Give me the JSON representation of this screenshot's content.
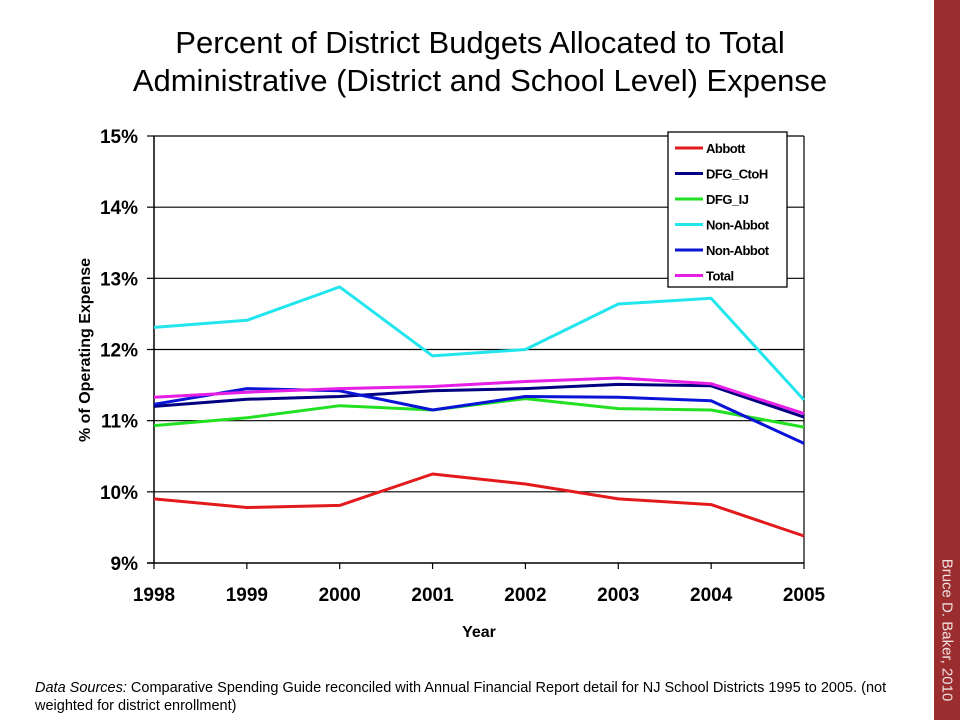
{
  "title_lines": [
    "Percent of District Budgets Allocated to Total",
    "Administrative (District and School Level) Expense"
  ],
  "side_band": {
    "text": "Bruce D. Baker, 2010",
    "color": "#9b2d2f"
  },
  "footnote": {
    "label": "Data Sources:",
    "text": " Comparative Spending Guide reconciled with Annual Financial Report detail for NJ School Districts 1995 to 2005. (not weighted for district enrollment)"
  },
  "chart_data": {
    "type": "line",
    "title": "Percent of District Budgets Allocated to Total Administrative (District and School Level) Expense",
    "xlabel": "Year",
    "ylabel": "% of Operating Expense",
    "categories": [
      "1998",
      "1999",
      "2000",
      "2001",
      "2002",
      "2003",
      "2004",
      "2005"
    ],
    "ylim": [
      9,
      15
    ],
    "yticks": [
      9,
      10,
      11,
      12,
      13,
      14,
      15
    ],
    "ytick_labels": [
      "9%",
      "10%",
      "11%",
      "12%",
      "13%",
      "14%",
      "15%"
    ],
    "grid": true,
    "legend_position": "top-right",
    "series": [
      {
        "name": "Abbott",
        "color": "#e31a1c",
        "values": [
          9.9,
          9.78,
          9.81,
          10.25,
          10.11,
          9.9,
          9.82,
          9.38
        ]
      },
      {
        "name": "DFG_CtoH",
        "color": "#000080",
        "values": [
          11.2,
          11.3,
          11.34,
          11.42,
          11.45,
          11.51,
          11.49,
          11.05
        ]
      },
      {
        "name": "DFG_IJ",
        "color": "#22e022",
        "values": [
          10.93,
          11.04,
          11.21,
          11.15,
          11.31,
          11.17,
          11.15,
          10.91
        ]
      },
      {
        "name": "Non-Abbot",
        "color": "#22e5ee",
        "values": [
          12.31,
          12.41,
          12.88,
          11.91,
          12.0,
          12.64,
          12.72,
          11.29
        ]
      },
      {
        "name": "Non-Abbot",
        "color": "#0a14d6",
        "values": [
          11.23,
          11.45,
          11.42,
          11.15,
          11.34,
          11.33,
          11.28,
          10.68
        ]
      },
      {
        "name": "Total",
        "color": "#e61ee6",
        "values": [
          11.33,
          11.4,
          11.45,
          11.48,
          11.55,
          11.6,
          11.52,
          11.1
        ]
      }
    ]
  }
}
